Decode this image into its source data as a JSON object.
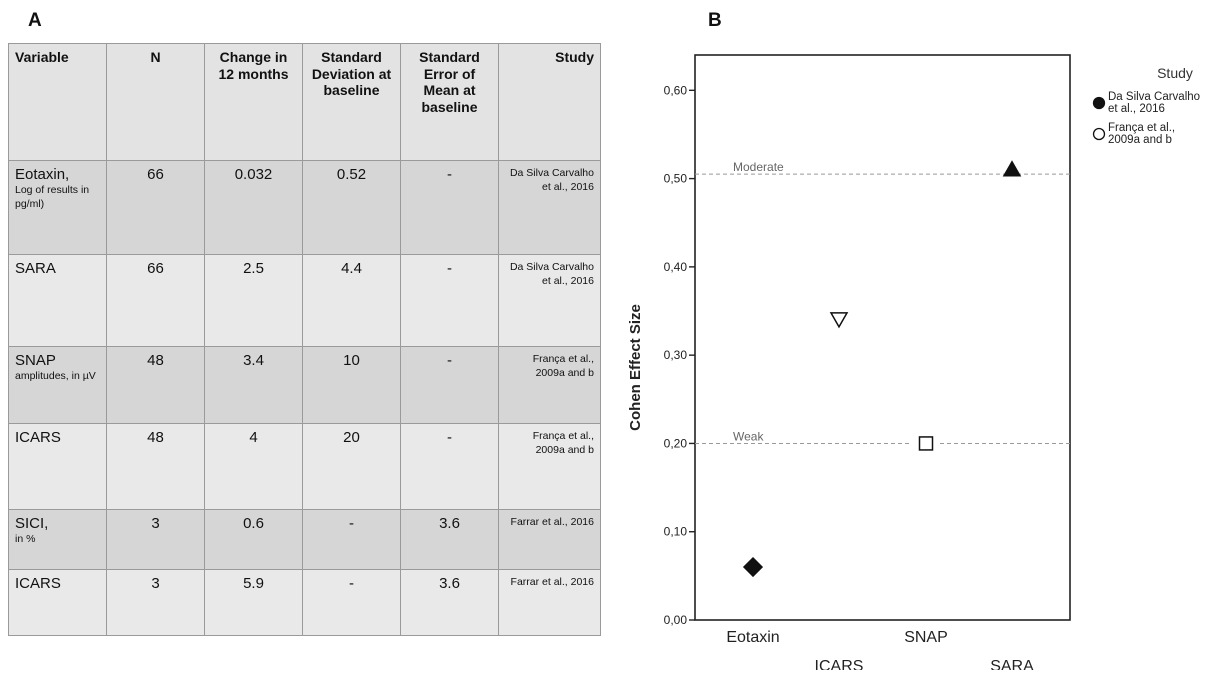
{
  "panel_a_letter": "A",
  "panel_b_letter": "B",
  "table": {
    "headers": [
      "Variable",
      "N",
      "Change in 12 months",
      "Standard Deviation at baseline",
      "Standard Error of Mean at baseline",
      "Study"
    ],
    "rows": [
      {
        "variable": "Eotaxin,",
        "variable_note": "Log of results in pg/ml)",
        "n": "66",
        "change": "0.032",
        "sd": "0.52",
        "sem": "-",
        "study": "Da Silva Carvalho et al., 2016"
      },
      {
        "variable": "SARA",
        "variable_note": "",
        "n": "66",
        "change": "2.5",
        "sd": "4.4",
        "sem": "-",
        "study": "Da Silva Carvalho et al., 2016"
      },
      {
        "variable": "SNAP",
        "variable_note": "amplitudes, in µV",
        "n": "48",
        "change": "3.4",
        "sd": "10",
        "sem": "-",
        "study": "França et al., 2009a and b"
      },
      {
        "variable": "ICARS",
        "variable_note": "",
        "n": "48",
        "change": "4",
        "sd": "20",
        "sem": "-",
        "study": "França et al., 2009a and b"
      },
      {
        "variable": "SICI,",
        "variable_note": "in %",
        "n": "3",
        "change": "0.6",
        "sd": "-",
        "sem": "3.6",
        "study": "Farrar et al., 2016"
      },
      {
        "variable": "ICARS",
        "variable_note": "",
        "n": "3",
        "change": "5.9",
        "sd": "-",
        "sem": "3.6",
        "study": "Farrar et al., 2016"
      }
    ]
  },
  "chart_data": {
    "type": "scatter",
    "ylabel": "Cohen Effect Size",
    "ylim": [
      0.0,
      0.64
    ],
    "yticks": [
      "0,00",
      "0,10",
      "0,20",
      "0,30",
      "0,40",
      "0,50",
      "0,60"
    ],
    "categories": [
      "Eotaxin",
      "ICARS",
      "SNAP",
      "SARA"
    ],
    "points": [
      {
        "category": "Eotaxin",
        "value": 0.06,
        "marker": "diamond",
        "filled": true,
        "study": "Da Silva Carvalho et al., 2016"
      },
      {
        "category": "ICARS",
        "value": 0.34,
        "marker": "triangle-down",
        "filled": false,
        "study": "França et al., 2009a and b"
      },
      {
        "category": "SNAP",
        "value": 0.2,
        "marker": "square",
        "filled": false,
        "study": "França et al., 2009a and b"
      },
      {
        "category": "SARA",
        "value": 0.51,
        "marker": "triangle-up",
        "filled": true,
        "study": "Da Silva Carvalho et al., 2016"
      }
    ],
    "reference_lines": [
      {
        "label": "Moderate",
        "value": 0.505
      },
      {
        "label": "Weak",
        "value": 0.2
      }
    ],
    "grid": false,
    "legend": {
      "title": "Study",
      "placement": "top-right outside",
      "entries": [
        {
          "label_lines": [
            "Da Silva Carvalho",
            "et al., 2016"
          ],
          "marker": "circle",
          "filled": true
        },
        {
          "label_lines": [
            "França et al.,",
            "2009a and b"
          ],
          "marker": "circle",
          "filled": false
        }
      ]
    },
    "colors": {
      "marker": "#111111",
      "reference": "#999999",
      "axis": "#222222"
    }
  }
}
